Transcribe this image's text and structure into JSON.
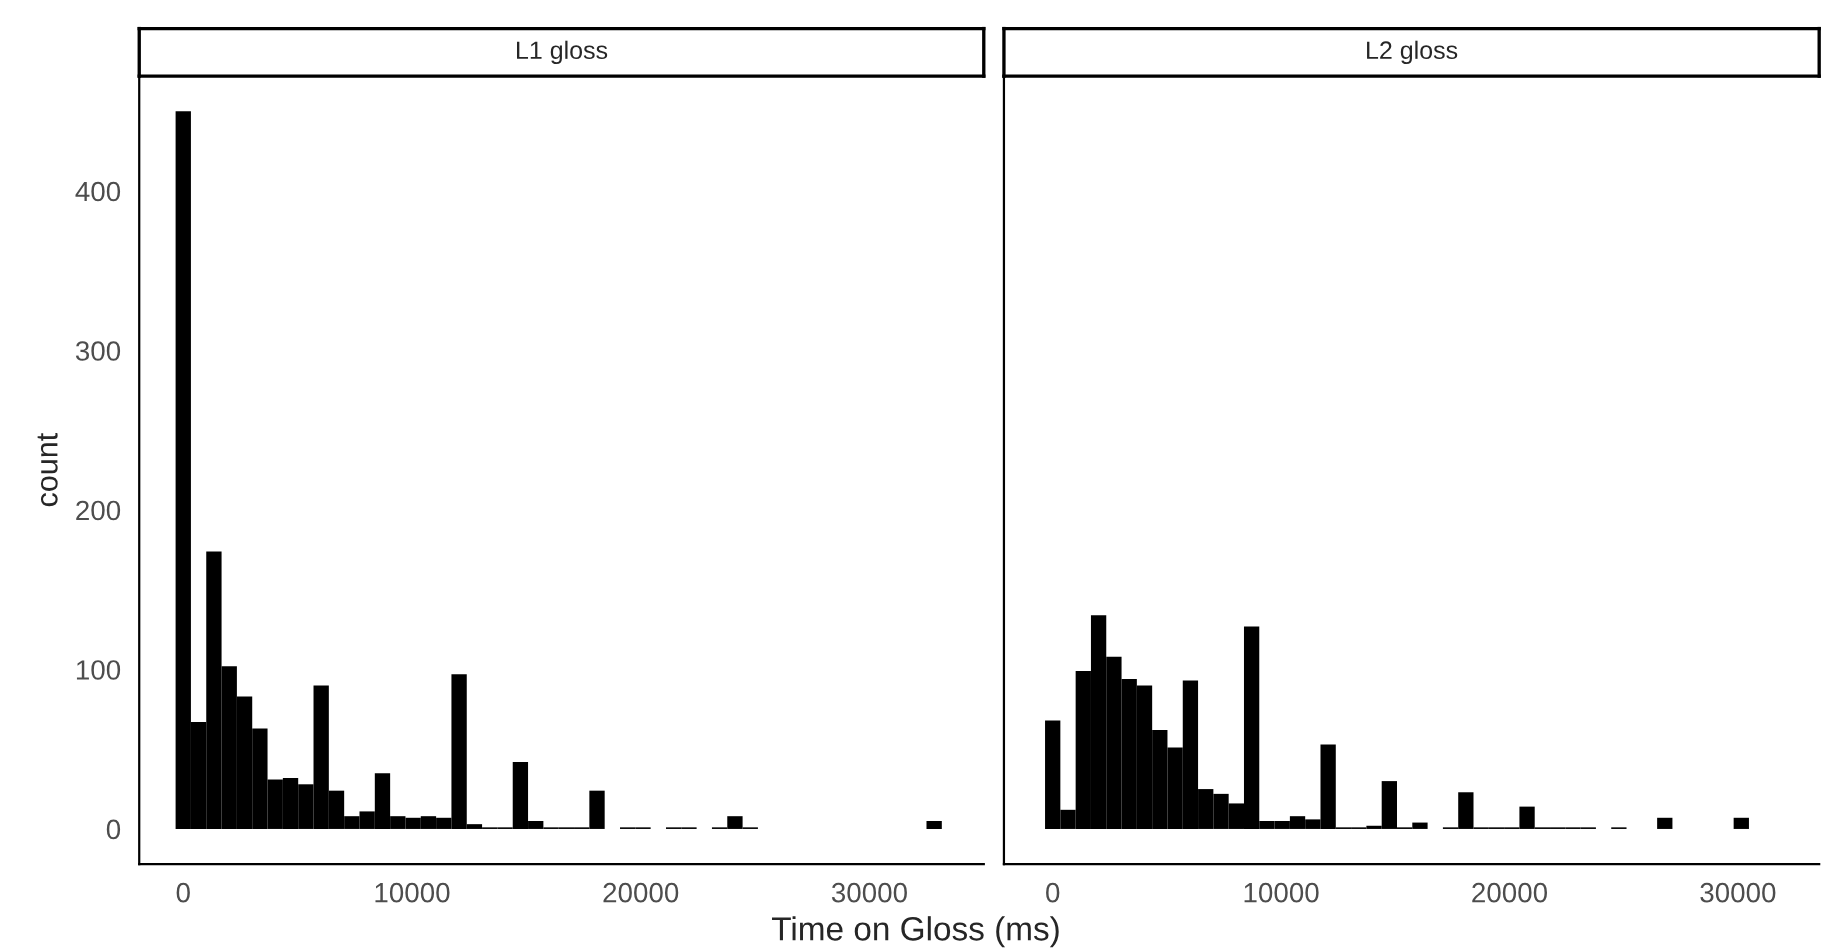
{
  "chart_data": [
    {
      "type": "histogram",
      "title": "L1 gloss",
      "xlabel": "Time on Gloss (ms)",
      "ylabel": "count",
      "color": "#000000",
      "bins": [
        -335,
        335,
        1005,
        1675,
        2345,
        3015,
        3685,
        4355,
        5025,
        5695,
        6365,
        7035,
        7705,
        8375,
        9045,
        9715,
        10385,
        11055,
        11725,
        12395,
        13065,
        13735,
        14405,
        15075,
        15745,
        16415,
        17085,
        17755,
        18425,
        19095,
        19765,
        20435,
        21105,
        21775,
        22445,
        23115,
        23785,
        24455,
        25125,
        25795,
        26465,
        27135,
        27805,
        28475,
        29145,
        29815,
        30485,
        31155,
        31825,
        32495,
        33165
      ],
      "values": [
        450,
        67,
        174,
        102,
        83,
        63,
        31,
        32,
        28,
        90,
        24,
        8,
        11,
        35,
        8,
        7,
        8,
        7,
        97,
        3,
        1,
        1,
        42,
        5,
        1,
        1,
        1,
        24,
        0,
        1,
        1,
        0,
        1,
        1,
        0,
        1,
        8,
        1,
        0,
        0,
        0,
        0,
        0,
        0,
        0,
        0,
        0,
        0,
        0,
        5
      ],
      "xlim": [
        -1925,
        35000
      ],
      "ylim": [
        -22,
        472
      ],
      "xticks": [
        0,
        10000,
        20000,
        30000
      ],
      "yticks": [
        0,
        100,
        200,
        300,
        400
      ],
      "grid": false
    },
    {
      "type": "histogram",
      "title": "L2 gloss",
      "color": "#000000",
      "bins": [
        -335,
        335,
        1005,
        1675,
        2345,
        3015,
        3685,
        4355,
        5025,
        5695,
        6365,
        7035,
        7705,
        8375,
        9045,
        9715,
        10385,
        11055,
        11725,
        12395,
        13065,
        13735,
        14405,
        15075,
        15745,
        16415,
        17085,
        17755,
        18425,
        19095,
        19765,
        20435,
        21105,
        21775,
        22445,
        23115,
        23785,
        24455,
        25125,
        25795,
        26465,
        27135,
        27805,
        28475,
        29145,
        29815,
        30485,
        31155,
        31825,
        32495,
        33165
      ],
      "values": [
        68,
        12,
        99,
        134,
        108,
        94,
        90,
        62,
        51,
        93,
        25,
        22,
        16,
        127,
        5,
        5,
        8,
        6,
        53,
        1,
        1,
        2,
        30,
        1,
        4,
        0,
        1,
        23,
        1,
        1,
        1,
        14,
        1,
        1,
        1,
        1,
        0,
        1,
        0,
        0,
        7,
        0,
        0,
        0,
        0,
        7,
        0,
        0,
        0,
        0
      ],
      "xlim": [
        -2135,
        33560
      ],
      "ylim": [
        -22,
        472
      ],
      "xticks": [
        0,
        10000,
        20000,
        30000
      ],
      "yticks": [
        0,
        100,
        200,
        300,
        400
      ],
      "tick_labels": "x",
      "grid": false
    }
  ]
}
